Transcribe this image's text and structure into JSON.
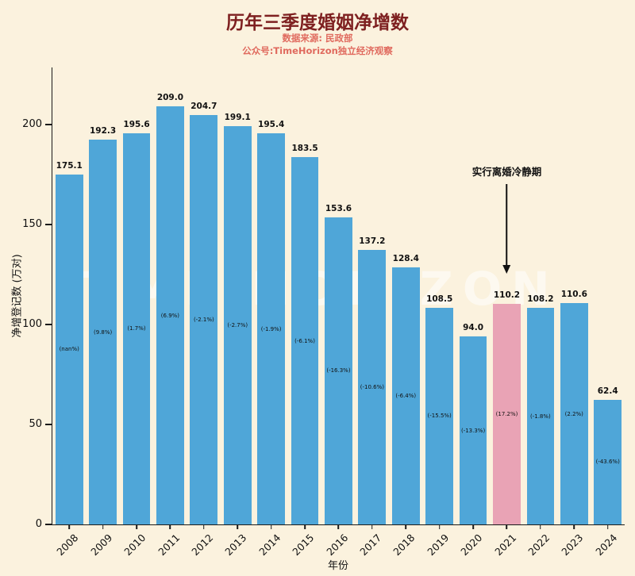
{
  "chart_data": {
    "type": "bar",
    "title": "历年三季度婚姻净增数",
    "source": "数据来源: 民政部",
    "subtitle": "公众号:TimeHorizon独立经济观察",
    "xlabel": "年份",
    "ylabel": "净增登记数 (万对)",
    "watermark": "TIME HORIZON",
    "annotation": "实行离婚冷静期",
    "categories": [
      "2008",
      "2009",
      "2010",
      "2011",
      "2012",
      "2013",
      "2014",
      "2015",
      "2016",
      "2017",
      "2018",
      "2019",
      "2020",
      "2021",
      "2022",
      "2023",
      "2024"
    ],
    "values": [
      175.1,
      192.3,
      195.6,
      209.0,
      204.7,
      199.1,
      195.4,
      183.5,
      153.6,
      137.2,
      128.4,
      108.5,
      94.0,
      110.2,
      108.2,
      110.6,
      62.4
    ],
    "pct_labels": [
      "(nan%)",
      "(9.8%)",
      "(1.7%)",
      "(6.9%)",
      "(-2.1%)",
      "(-2.7%)",
      "(-1.9%)",
      "(-6.1%)",
      "(-16.3%)",
      "(-10.6%)",
      "(-6.4%)",
      "(-15.5%)",
      "(-13.3%)",
      "(17.2%)",
      "(-1.8%)",
      "(2.2%)",
      "(-43.6%)"
    ],
    "highlight_index": 13,
    "yticks": [
      0,
      50,
      100,
      150,
      200
    ],
    "ylim": [
      0,
      228.5
    ],
    "legend": null,
    "grid": false,
    "colors": {
      "bar": "#4fa6d8",
      "highlight": "#e9a3b5",
      "background": "#fbf2de",
      "title": "#7e2020",
      "subtitle": "#e06a5e"
    }
  }
}
